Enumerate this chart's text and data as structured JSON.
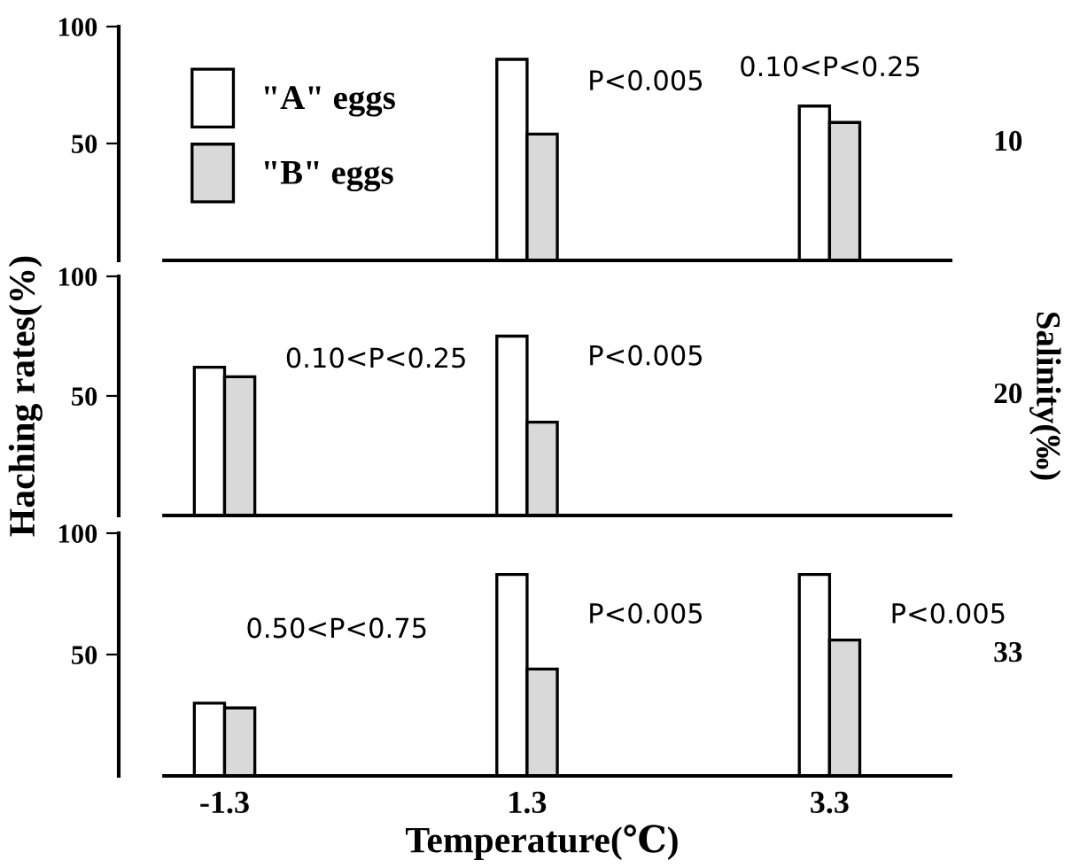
{
  "chart_data": [
    {
      "type": "bar",
      "categories": [
        "-1.3",
        "1.3",
        "3.3"
      ],
      "ylim": [
        0,
        100
      ],
      "yticks": [
        50,
        100
      ],
      "tick_labels": "y",
      "legend": "top left",
      "series": [
        {
          "name": "\"A\" eggs",
          "color": "#ffffff",
          "values": [
            null,
            86,
            66
          ]
        },
        {
          "name": "\"B\" eggs",
          "color": "#d9d9d9",
          "values": [
            null,
            54,
            59
          ]
        }
      ],
      "annotations": [
        "10",
        {
          "text": "P<0.005",
          "x": "1.3",
          "y": 76
        },
        "0.10<P<0.25"
      ]
    },
    {
      "type": "bar",
      "categories": [
        "-1.3",
        "1.3",
        "3.3"
      ],
      "ylim": [
        0,
        100
      ],
      "yticks": [
        50,
        100
      ],
      "tick_labels": "y",
      "ylabel": "Haching rates(%)",
      "y2label": "Salinity(‰)",
      "series": [
        {
          "color": "#ffffff",
          "values": [
            62,
            75,
            null
          ]
        },
        {
          "color": "#d9d9d9",
          "values": [
            58,
            39,
            null
          ]
        }
      ],
      "annotations": [
        "20",
        {
          "text": "0.10<P<0.25",
          "x": "-1.3",
          "y": 65
        },
        {
          "text": "P<0.005",
          "x": "1.3",
          "y": 66
        }
      ]
    },
    {
      "type": "bar",
      "categories": [
        "-1.3",
        "1.3",
        "3.3"
      ],
      "ylim": [
        0,
        100
      ],
      "yticks": [
        50,
        100
      ],
      "xlabel": "Temperature(℃)",
      "series": [
        {
          "color": "#ffffff",
          "values": [
            30,
            83,
            83
          ]
        },
        {
          "color": "#d9d9d9",
          "values": [
            28,
            44,
            56
          ]
        }
      ],
      "annotations": [
        "33",
        "0.50<P<0.75",
        {
          "text": "P<0.005",
          "x": "1.3",
          "y": 66
        },
        {
          "text": "P<0.005",
          "x": "3.3",
          "y": 66
        }
      ]
    }
  ]
}
